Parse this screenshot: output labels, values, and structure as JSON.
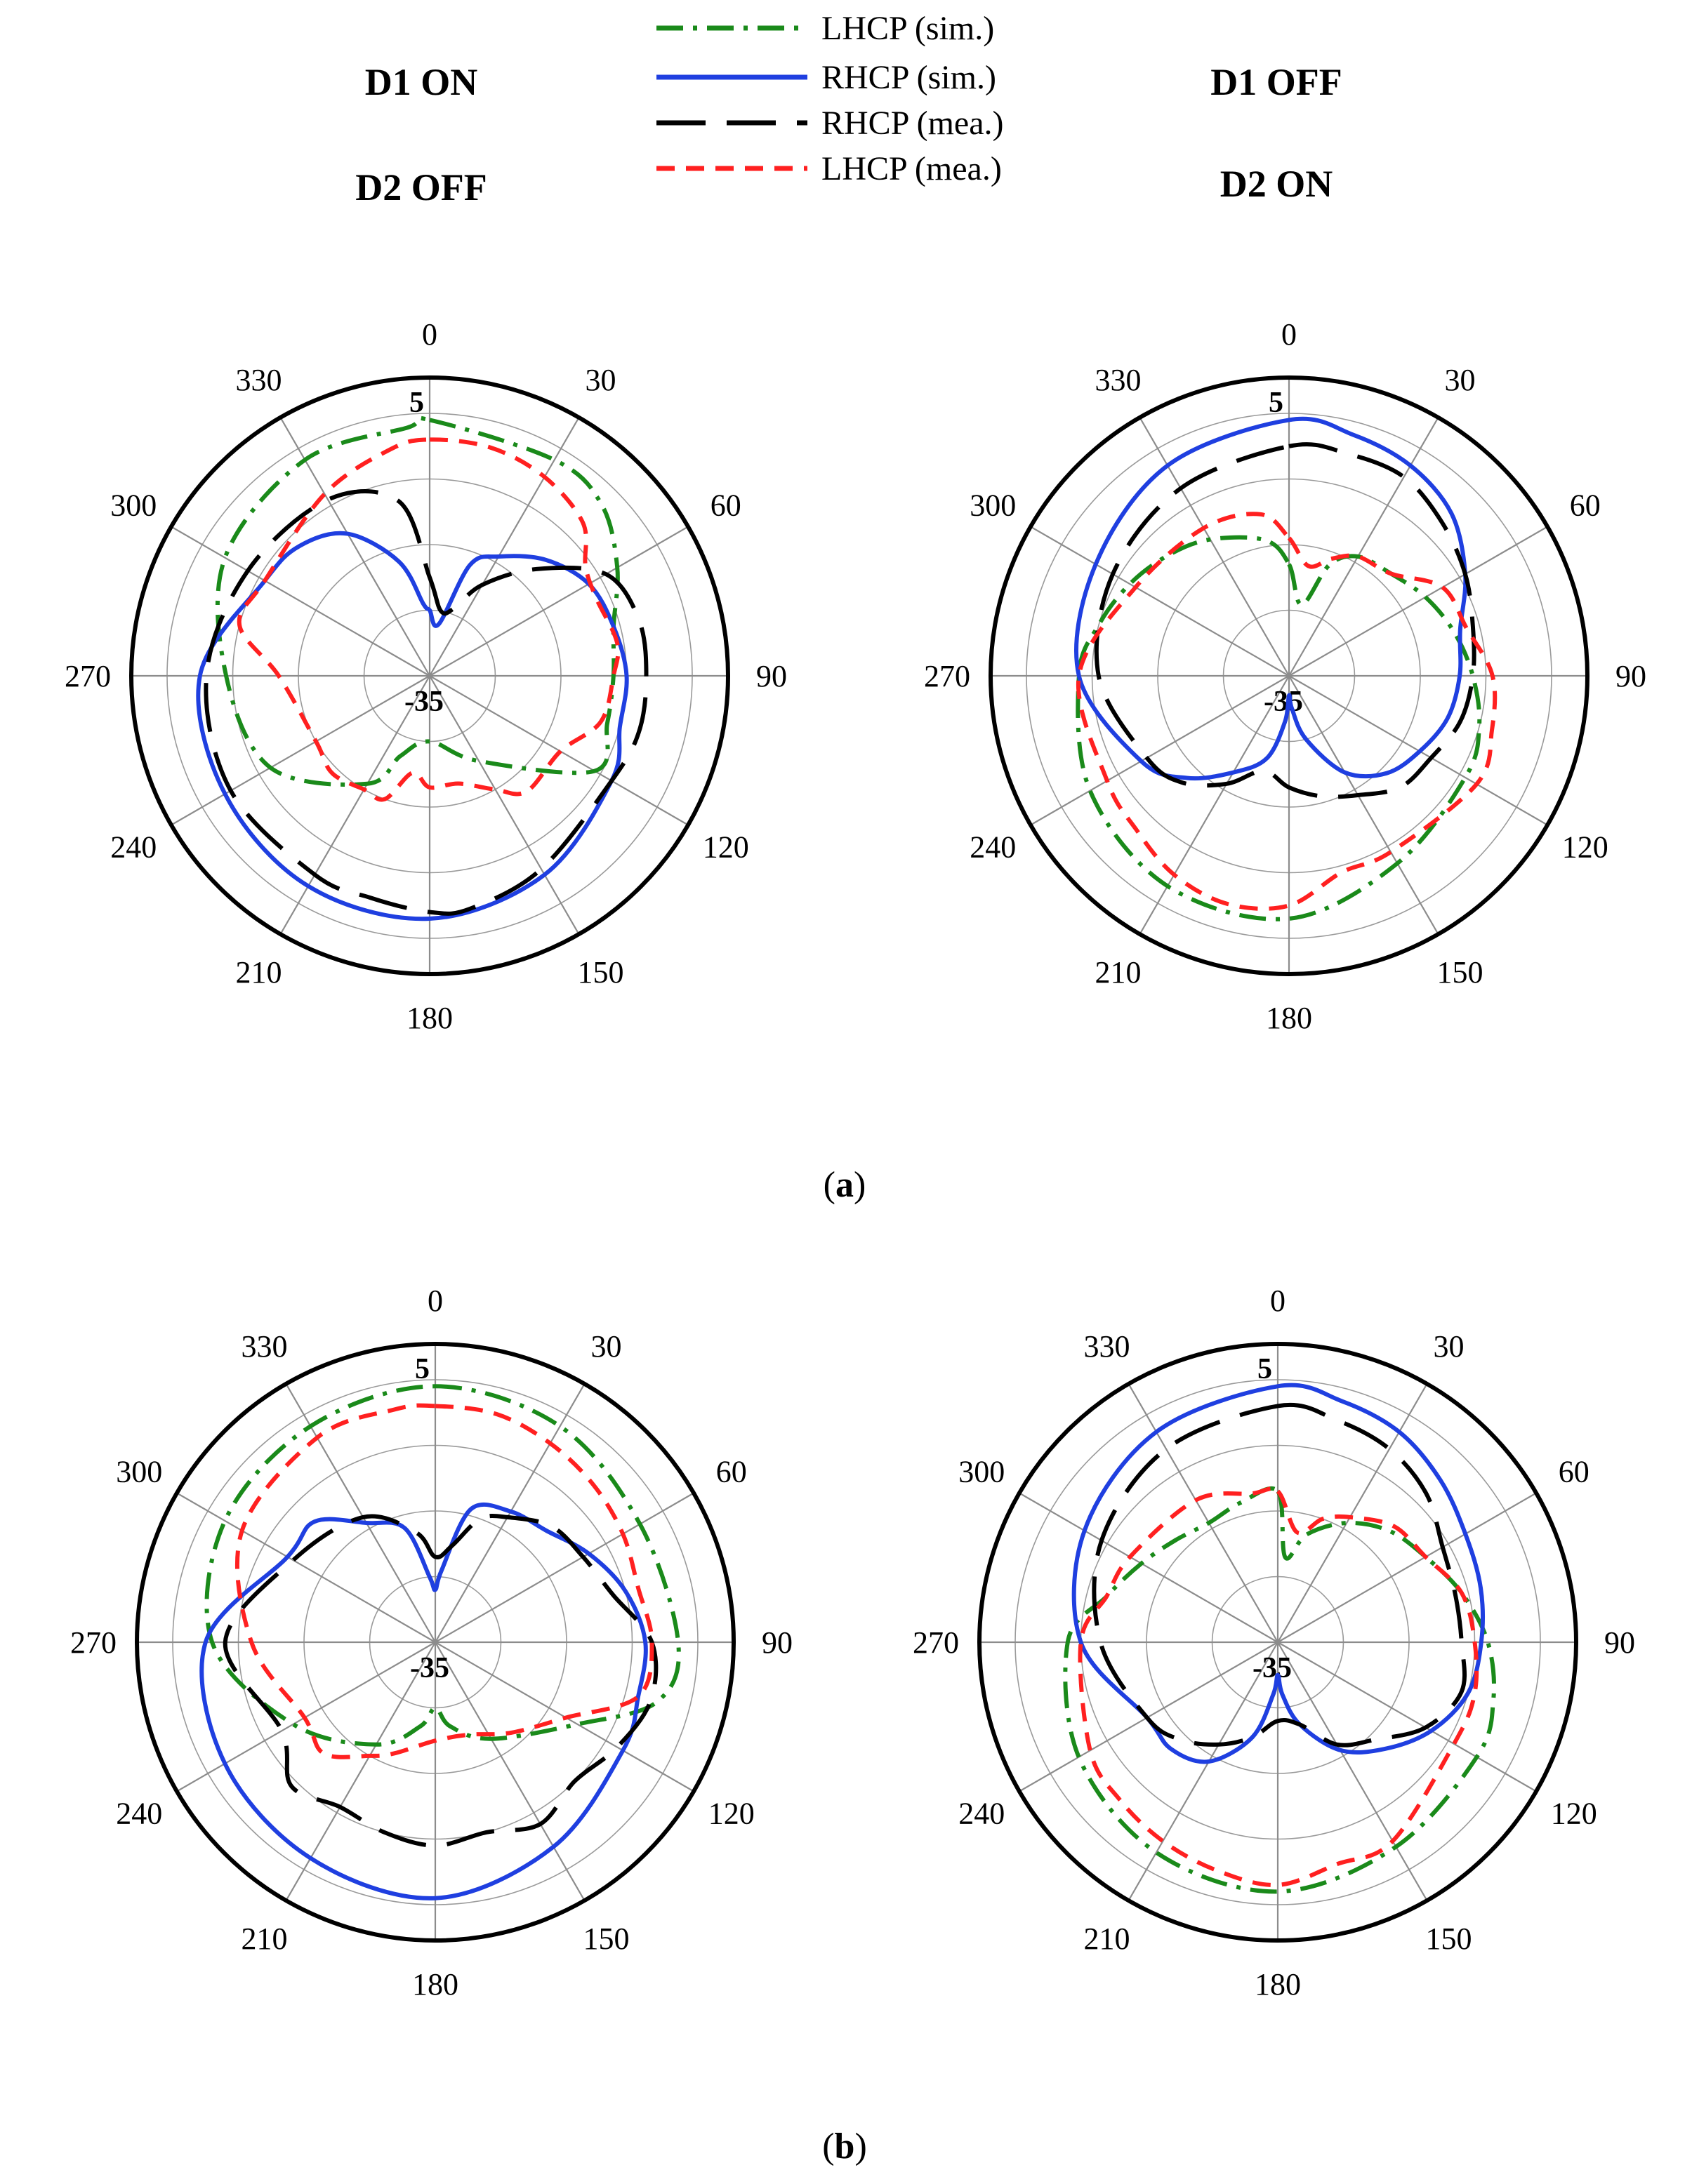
{
  "legend": {
    "items": [
      {
        "label": "LHCP (sim.)",
        "color": "#1a8a1a",
        "style": "dashdot"
      },
      {
        "label": "RHCP (sim.)",
        "color": "#1f3fe0",
        "style": "solid"
      },
      {
        "label": "RHCP (mea.)",
        "color": "#000000",
        "style": "longdash"
      },
      {
        "label": "LHCP (mea.)",
        "color": "#ff2020",
        "style": "shortdash"
      }
    ]
  },
  "state_labels": {
    "left_top": "D1 ON",
    "left_bottom": "D2 OFF",
    "right_top": "D1 OFF",
    "right_bottom": "D2 ON"
  },
  "captions": {
    "a": {
      "open": "(",
      "letter": "a",
      "close": ")"
    },
    "b": {
      "open": "(",
      "letter": "b",
      "close": ")"
    }
  },
  "chart_data": [
    {
      "type": "polar",
      "panel": "a-left",
      "angle_ticks": [
        "0",
        "30",
        "60",
        "90",
        "120",
        "150",
        "180",
        "210",
        "240",
        "270",
        "300",
        "330"
      ],
      "r_labels": {
        "max": "5",
        "min": "-35"
      },
      "rlim": [
        -35,
        5
      ],
      "series": [
        {
          "name": "LHCP (sim.)",
          "color": "#1a8a1a",
          "style": "dashdot",
          "theta": [
            0,
            30,
            45,
            60,
            75,
            90,
            105,
            120,
            150,
            180,
            200,
            210,
            240,
            270,
            300,
            330,
            355
          ],
          "r": [
            4,
            3,
            2,
            -2,
            -6,
            -7,
            -7,
            -6,
            -20,
            -25,
            -22,
            -16,
            -7,
            -4,
            1,
            3,
            3
          ]
        },
        {
          "name": "RHCP (sim.)",
          "color": "#1f3fe0",
          "style": "solid",
          "theta": [
            0,
            10,
            20,
            30,
            45,
            60,
            75,
            90,
            105,
            120,
            150,
            180,
            210,
            240,
            270,
            300,
            315,
            330,
            345,
            355
          ],
          "r": [
            -25,
            -27,
            -17,
            -14,
            -10,
            -7,
            -6,
            -5,
            -5,
            -3,
            0,
            2,
            2,
            1,
            0,
            -6,
            -7,
            -10,
            -17,
            -24
          ]
        },
        {
          "name": "RHCP (mea.)",
          "color": "#000000",
          "style": "longdash",
          "theta": [
            0,
            10,
            20,
            30,
            45,
            60,
            75,
            90,
            105,
            120,
            150,
            170,
            180,
            195,
            210,
            240,
            270,
            300,
            330,
            350
          ],
          "r": [
            -20,
            -25,
            -24,
            -19,
            -12,
            -4,
            -2,
            -2,
            -2,
            -3,
            -1,
            1,
            1,
            0,
            0,
            0,
            -1,
            -3,
            -4,
            -8
          ]
        },
        {
          "name": "LHCP (mea.)",
          "color": "#ff2020",
          "style": "shortdash",
          "theta": [
            0,
            15,
            30,
            45,
            55,
            65,
            80,
            90,
            105,
            120,
            140,
            150,
            165,
            180,
            190,
            200,
            210,
            225,
            240,
            270,
            285,
            300,
            330,
            350
          ],
          "r": [
            1,
            1,
            0,
            -2,
            -6,
            -7,
            -6,
            -7,
            -8,
            -12,
            -12,
            -15,
            -18,
            -18,
            -20,
            -15,
            -15,
            -14,
            -15,
            -12,
            -5,
            -6,
            -3,
            0
          ]
        }
      ]
    },
    {
      "type": "polar",
      "panel": "a-right",
      "angle_ticks": [
        "0",
        "30",
        "60",
        "90",
        "120",
        "150",
        "180",
        "210",
        "240",
        "270",
        "300",
        "330"
      ],
      "r_labels": {
        "max": "5",
        "min": "-35"
      },
      "rlim": [
        -35,
        5
      ],
      "series": [
        {
          "name": "LHCP (sim.)",
          "color": "#1a8a1a",
          "style": "dashdot",
          "theta": [
            0,
            10,
            20,
            30,
            45,
            60,
            75,
            90,
            105,
            120,
            150,
            180,
            210,
            240,
            270,
            285,
            300,
            315,
            330,
            350
          ],
          "r": [
            -18,
            -24,
            -17,
            -14,
            -13,
            -11,
            -9,
            -7,
            -5,
            -4,
            -2,
            2,
            2,
            0,
            -3,
            -5,
            -7,
            -9,
            -11,
            -14
          ]
        },
        {
          "name": "RHCP (sim.)",
          "color": "#1f3fe0",
          "style": "solid",
          "theta": [
            0,
            15,
            30,
            45,
            60,
            75,
            90,
            105,
            120,
            135,
            150,
            165,
            175,
            180,
            185,
            195,
            210,
            225,
            240,
            270,
            300,
            330
          ],
          "r": [
            4,
            3,
            2,
            0,
            -4,
            -8,
            -9,
            -10,
            -12,
            -14,
            -18,
            -25,
            -30,
            -32,
            -28,
            -22,
            -18,
            -13,
            -9,
            -3,
            -1,
            2
          ]
        },
        {
          "name": "RHCP (mea.)",
          "color": "#000000",
          "style": "longdash",
          "theta": [
            0,
            15,
            30,
            45,
            60,
            75,
            90,
            105,
            120,
            135,
            150,
            165,
            180,
            195,
            210,
            225,
            240,
            270,
            300,
            330
          ],
          "r": [
            0,
            0,
            0,
            -2,
            -4,
            -6,
            -7,
            -8,
            -10,
            -11,
            -14,
            -16,
            -18,
            -20,
            -16,
            -12,
            -10,
            -6,
            -4,
            -2
          ]
        },
        {
          "name": "LHCP (mea.)",
          "color": "#ff2020",
          "style": "shortdash",
          "theta": [
            0,
            10,
            20,
            30,
            45,
            60,
            75,
            90,
            105,
            120,
            150,
            165,
            180,
            195,
            210,
            225,
            240,
            270,
            300,
            330,
            350
          ],
          "r": [
            -14,
            -18,
            -16,
            -14,
            -13,
            -8,
            -7,
            -4,
            -3,
            -2,
            -4,
            -4,
            0,
            1,
            0,
            -2,
            -3,
            -3,
            -8,
            -9,
            -10
          ]
        }
      ]
    },
    {
      "type": "polar",
      "panel": "b-left",
      "angle_ticks": [
        "0",
        "30",
        "60",
        "90",
        "120",
        "150",
        "180",
        "210",
        "240",
        "270",
        "300",
        "330"
      ],
      "r_labels": {
        "max": "5",
        "min": "-35"
      },
      "rlim": [
        -35,
        5
      ],
      "series": [
        {
          "name": "LHCP (sim.)",
          "color": "#1a8a1a",
          "style": "dashdot",
          "theta": [
            0,
            30,
            60,
            90,
            105,
            120,
            150,
            170,
            180,
            190,
            210,
            240,
            270,
            300,
            330
          ],
          "r": [
            4,
            3,
            1,
            2,
            0,
            -10,
            -18,
            -22,
            -25,
            -22,
            -17,
            -10,
            -1,
            2,
            3
          ]
        },
        {
          "name": "RHCP (sim.)",
          "color": "#1f3fe0",
          "style": "solid",
          "theta": [
            0,
            5,
            15,
            30,
            45,
            60,
            75,
            90,
            105,
            120,
            150,
            180,
            210,
            240,
            270,
            300,
            315,
            330,
            345,
            355
          ],
          "r": [
            -27,
            -24,
            -14,
            -12,
            -11,
            -8,
            -5,
            -3,
            -3,
            -2,
            1,
            4,
            3,
            2,
            0,
            -9,
            -9,
            -14,
            -17,
            -25
          ]
        },
        {
          "name": "RHCP (mea.)",
          "color": "#000000",
          "style": "longdash",
          "theta": [
            0,
            10,
            20,
            30,
            45,
            60,
            75,
            90,
            105,
            120,
            135,
            150,
            165,
            180,
            195,
            210,
            225,
            240,
            270,
            300,
            330,
            350
          ],
          "r": [
            -22,
            -20,
            -15,
            -13,
            -10,
            -9,
            -7,
            -2,
            -1,
            -3,
            -5,
            -3,
            -5,
            -4,
            -5,
            -6,
            -4,
            -8,
            -3,
            -10,
            -13,
            -18
          ]
        },
        {
          "name": "LHCP (mea.)",
          "color": "#ff2020",
          "style": "shortdash",
          "theta": [
            0,
            15,
            30,
            45,
            60,
            75,
            90,
            105,
            120,
            140,
            160,
            180,
            200,
            210,
            225,
            240,
            270,
            300,
            330,
            350
          ],
          "r": [
            1,
            1,
            0,
            -1,
            -2,
            -3,
            -2,
            -3,
            -12,
            -17,
            -20,
            -20,
            -17,
            -15,
            -11,
            -12,
            -7,
            -1,
            1,
            1
          ]
        }
      ]
    },
    {
      "type": "polar",
      "panel": "b-right",
      "angle_ticks": [
        "0",
        "30",
        "60",
        "90",
        "120",
        "150",
        "180",
        "210",
        "240",
        "270",
        "300",
        "330"
      ],
      "r_labels": {
        "max": "5",
        "min": "-35"
      },
      "rlim": [
        -35,
        5
      ],
      "series": [
        {
          "name": "LHCP (sim.)",
          "color": "#1a8a1a",
          "style": "dashdot",
          "theta": [
            0,
            5,
            15,
            30,
            45,
            60,
            75,
            90,
            105,
            120,
            150,
            180,
            210,
            240,
            270,
            285,
            300,
            315,
            330,
            345
          ],
          "r": [
            -12,
            -22,
            -18,
            -14,
            -11,
            -9,
            -6,
            -3,
            -1,
            0,
            1,
            3,
            2,
            0,
            -3,
            -8,
            -11,
            -13,
            -14,
            -13
          ]
        },
        {
          "name": "RHCP (sim.)",
          "color": "#1f3fe0",
          "style": "solid",
          "theta": [
            0,
            15,
            30,
            45,
            60,
            75,
            90,
            105,
            120,
            135,
            150,
            165,
            175,
            180,
            185,
            195,
            210,
            225,
            240,
            270,
            300,
            330
          ],
          "r": [
            4,
            3,
            2,
            0,
            -2,
            -3,
            -4,
            -5,
            -8,
            -12,
            -16,
            -22,
            -27,
            -30,
            -27,
            -20,
            -14,
            -12,
            -12,
            -5,
            -1,
            2
          ]
        },
        {
          "name": "RHCP (mea.)",
          "color": "#000000",
          "style": "longdash",
          "theta": [
            0,
            15,
            30,
            45,
            60,
            75,
            90,
            105,
            120,
            135,
            150,
            165,
            180,
            195,
            210,
            225,
            240,
            270,
            300,
            330
          ],
          "r": [
            1,
            0,
            -1,
            -3,
            -6,
            -7,
            -7,
            -6,
            -9,
            -14,
            -17,
            -22,
            -23,
            -20,
            -17,
            -14,
            -12,
            -8,
            -4,
            -1
          ]
        },
        {
          "name": "LHCP (mea.)",
          "color": "#ff2020",
          "style": "shortdash",
          "theta": [
            0,
            10,
            20,
            30,
            45,
            60,
            75,
            90,
            105,
            120,
            150,
            165,
            180,
            195,
            210,
            225,
            240,
            270,
            285,
            300,
            330,
            350
          ],
          "r": [
            -12,
            -18,
            -15,
            -13,
            -10,
            -9,
            -6,
            -5,
            -4,
            -4,
            0,
            0,
            2,
            1,
            0,
            -1,
            -2,
            -5,
            -8,
            -9,
            -10,
            -12
          ]
        }
      ]
    }
  ]
}
